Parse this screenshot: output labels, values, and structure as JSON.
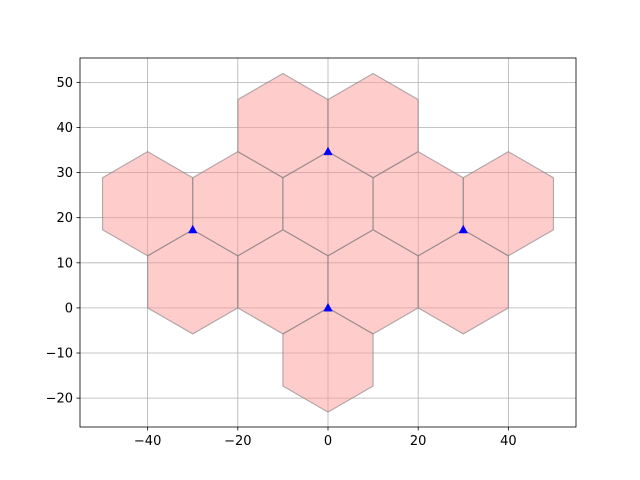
{
  "chart_data": {
    "type": "scatter",
    "title": "",
    "xlabel": "",
    "ylabel": "",
    "xlim": [
      -55,
      55
    ],
    "ylim": [
      -26.4,
      55.4
    ],
    "grid": true,
    "xticks": [
      -40,
      -20,
      0,
      20,
      40
    ],
    "xtick_labels": [
      "−40",
      "−20",
      "0",
      "20",
      "40"
    ],
    "yticks": [
      -20,
      -10,
      0,
      10,
      20,
      30,
      40,
      50
    ],
    "ytick_labels": [
      "−20",
      "−10",
      "0",
      "10",
      "20",
      "30",
      "40",
      "50"
    ],
    "hexagons": {
      "circumradius": 11.547,
      "orientation": "pointy-top",
      "fill_color": "#ff9999",
      "fill_alpha": 0.5,
      "edge_color": "#808080",
      "centers": [
        {
          "x": 0,
          "y": -11.547
        },
        {
          "x": -30,
          "y": 5.774
        },
        {
          "x": -10,
          "y": 5.774
        },
        {
          "x": 10,
          "y": 5.774
        },
        {
          "x": 30,
          "y": 5.774
        },
        {
          "x": -40,
          "y": 23.094
        },
        {
          "x": -20,
          "y": 23.094
        },
        {
          "x": 0,
          "y": 23.094
        },
        {
          "x": 20,
          "y": 23.094
        },
        {
          "x": 40,
          "y": 23.094
        },
        {
          "x": -10,
          "y": 40.415
        },
        {
          "x": 10,
          "y": 40.415
        }
      ]
    },
    "series": [
      {
        "marker": "triangle-up",
        "color": "#0000ff",
        "points": [
          {
            "x": 0,
            "y": 0
          },
          {
            "x": -30,
            "y": 17.32
          },
          {
            "x": 30,
            "y": 17.32
          },
          {
            "x": 0,
            "y": 34.64
          }
        ]
      }
    ]
  }
}
